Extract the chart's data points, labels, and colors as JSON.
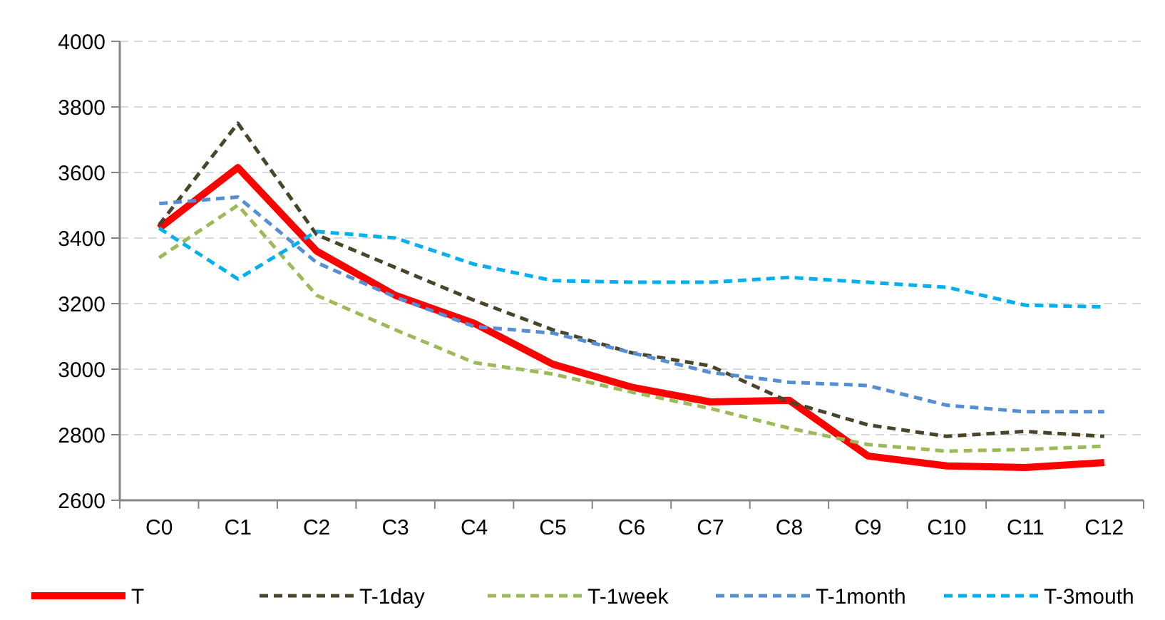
{
  "chart_data": {
    "type": "line",
    "categories": [
      "C0",
      "C1",
      "C2",
      "C3",
      "C4",
      "C5",
      "C6",
      "C7",
      "C8",
      "C9",
      "C10",
      "C11",
      "C12"
    ],
    "series": [
      {
        "name": "T",
        "color": "#ff0000",
        "line_style": "solid",
        "values": [
          3430,
          3615,
          3360,
          3225,
          3140,
          3015,
          2945,
          2900,
          2905,
          2735,
          2705,
          2700,
          2715
        ]
      },
      {
        "name": "T-1day",
        "color": "#4a452a",
        "line_style": "dashed",
        "values": [
          3440,
          3750,
          3410,
          3310,
          3210,
          3120,
          3050,
          3010,
          2900,
          2830,
          2795,
          2810,
          2795
        ]
      },
      {
        "name": "T-1week",
        "color": "#9bbb59",
        "line_style": "dashed",
        "values": [
          3340,
          3500,
          3225,
          3120,
          3020,
          2985,
          2930,
          2880,
          2820,
          2770,
          2750,
          2755,
          2765
        ]
      },
      {
        "name": "T-1month",
        "color": "#558ed5",
        "line_style": "dashed",
        "values": [
          3505,
          3525,
          3325,
          3220,
          3130,
          3110,
          3050,
          2990,
          2960,
          2950,
          2890,
          2870,
          2870
        ]
      },
      {
        "name": "T-3mouth",
        "color": "#00b0f0",
        "line_style": "dashed",
        "values": [
          3430,
          3275,
          3420,
          3400,
          3320,
          3270,
          3265,
          3265,
          3280,
          3265,
          3250,
          3195,
          3190
        ]
      }
    ],
    "ylim": [
      2600,
      4000
    ],
    "yticks": [
      2600,
      2800,
      3000,
      3200,
      3400,
      3600,
      3800,
      4000
    ],
    "grid": "y",
    "legend": "bottom",
    "marker": "none"
  }
}
